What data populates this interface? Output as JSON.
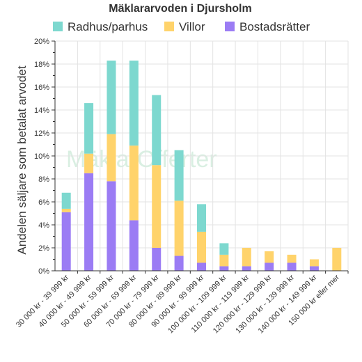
{
  "chart_data": {
    "type": "bar",
    "stacked": true,
    "title": "Mäklararvoden i Djursholm",
    "ylabel": "Andelen säljare som betalat arvodet",
    "xlabel": "",
    "ylim": [
      0,
      20
    ],
    "y_ticks": [
      "0%",
      "2%",
      "4%",
      "6%",
      "8%",
      "10%",
      "12%",
      "14%",
      "16%",
      "18%",
      "20%"
    ],
    "grid": true,
    "legend_position": "top",
    "categories": [
      "30 000 kr - 39 999 kr",
      "40 000 kr - 49 999 kr",
      "50 000 kr - 59 999 kr",
      "60 000 kr - 69 999 kr",
      "70 000 kr - 79 999 kr",
      "80 000 kr - 89 999 kr",
      "90 000 kr - 99 999 kr",
      "100 000 kr - 109 999 kr",
      "110 000 kr - 119 999 kr",
      "120 000 kr - 129 999 kr",
      "130 000 kr - 139 999 kr",
      "140 000 kr - 149 999 kr",
      "150 000 kr eller mer"
    ],
    "series": [
      {
        "name": "Bostadsrätter",
        "color": "#9b7cf4",
        "values": [
          5.1,
          8.5,
          7.8,
          4.4,
          2.0,
          1.3,
          0.7,
          0.4,
          0.4,
          0.7,
          0.7,
          0.4,
          0.0
        ]
      },
      {
        "name": "Villor",
        "color": "#ffd36b",
        "values": [
          0.3,
          1.7,
          4.1,
          6.5,
          7.2,
          4.8,
          2.7,
          1.0,
          1.6,
          1.0,
          0.7,
          0.6,
          2.0
        ]
      },
      {
        "name": "Radhus/parhus",
        "color": "#7dd8cf",
        "values": [
          1.4,
          4.4,
          6.4,
          7.4,
          6.1,
          4.4,
          2.4,
          1.0,
          0.0,
          0.0,
          0.0,
          0.0,
          0.0
        ]
      }
    ],
    "legend_order": [
      "Radhus/parhus",
      "Villor",
      "Bostadsrätter"
    ],
    "watermark": "MäklarOfferter"
  }
}
